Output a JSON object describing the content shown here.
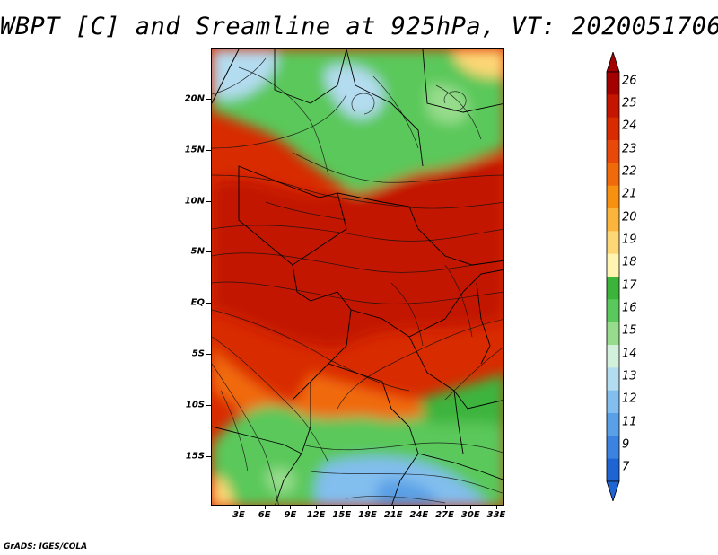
{
  "title": "WBPT [C] and Sreamline at 925hPa, VT: 2020051706",
  "credit": "GrADS: IGES/COLA",
  "map": {
    "lat_labels": [
      "20N",
      "15N",
      "10N",
      "5N",
      "EQ",
      "5S",
      "10S",
      "15S"
    ],
    "lon_labels": [
      "3E",
      "6E",
      "9E",
      "12E",
      "15E",
      "18E",
      "21E",
      "24E",
      "27E",
      "30E",
      "33E"
    ],
    "lat_range": [
      -20,
      24
    ],
    "lon_range": [
      0,
      34
    ]
  },
  "colorbar": {
    "labels": [
      "26",
      "25",
      "24",
      "23",
      "22",
      "21",
      "20",
      "19",
      "18",
      "17",
      "16",
      "15",
      "14",
      "13",
      "12",
      "11",
      "9",
      "7"
    ],
    "colors": [
      "#a50000",
      "#c31500",
      "#d82b00",
      "#e8480a",
      "#f06a0a",
      "#f89010",
      "#fbb43c",
      "#fdd776",
      "#fff5b0",
      "#3cb43c",
      "#5ac85a",
      "#96dc8c",
      "#d2f0dc",
      "#b4dcf0",
      "#82beee",
      "#5aa0e6",
      "#3c82e1",
      "#1e64d2"
    ],
    "top_color": "#a50000",
    "bottom_color": "#1e64d2"
  }
}
